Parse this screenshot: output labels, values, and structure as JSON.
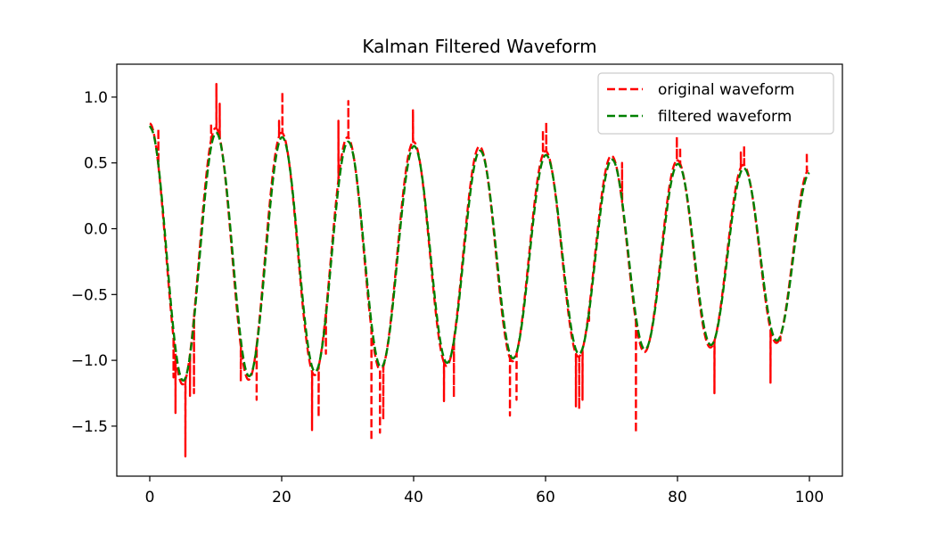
{
  "chart_data": {
    "type": "line",
    "title": "Kalman Filtered Waveform",
    "xlabel": "",
    "ylabel": "",
    "xlim": [
      -5,
      105
    ],
    "ylim": [
      -1.88,
      1.25
    ],
    "xticks": [
      0,
      20,
      40,
      60,
      80,
      100
    ],
    "xtick_labels": [
      "0",
      "20",
      "40",
      "60",
      "80",
      "100"
    ],
    "yticks": [
      -1.5,
      -1.0,
      -0.5,
      0.0,
      0.5,
      1.0
    ],
    "ytick_labels": [
      "−1.5",
      "−1.0",
      "−0.5",
      "0.0",
      "0.5",
      "1.0"
    ],
    "grid": false,
    "legend_position": "top-right",
    "signal_model": {
      "x_range": [
        0,
        100
      ],
      "period": 10,
      "amplitude_start": 1.0,
      "amplitude_end": 0.65,
      "offset_start": -0.2,
      "offset_end": -0.2
    },
    "series": [
      {
        "name": "original waveform",
        "color": "#ff0000",
        "style": "dashed",
        "spikes": [
          {
            "x": 1.3,
            "y": 0.76
          },
          {
            "x": 3.6,
            "y": -1.13
          },
          {
            "x": 3.9,
            "y": -1.4
          },
          {
            "x": 5.4,
            "y": -1.73
          },
          {
            "x": 6.1,
            "y": -1.27
          },
          {
            "x": 6.7,
            "y": -1.25
          },
          {
            "x": 9.3,
            "y": 0.8
          },
          {
            "x": 10.1,
            "y": 1.1
          },
          {
            "x": 10.6,
            "y": 0.95
          },
          {
            "x": 13.8,
            "y": -1.16
          },
          {
            "x": 16.2,
            "y": -1.3
          },
          {
            "x": 19.6,
            "y": 0.82
          },
          {
            "x": 20.1,
            "y": 1.04
          },
          {
            "x": 24.6,
            "y": -1.53
          },
          {
            "x": 25.6,
            "y": -1.43
          },
          {
            "x": 26.7,
            "y": -0.95
          },
          {
            "x": 28.6,
            "y": 0.82
          },
          {
            "x": 30.1,
            "y": 0.97
          },
          {
            "x": 33.6,
            "y": -1.61
          },
          {
            "x": 34.9,
            "y": -1.55
          },
          {
            "x": 35.4,
            "y": -1.45
          },
          {
            "x": 39.9,
            "y": 0.9
          },
          {
            "x": 44.6,
            "y": -1.31
          },
          {
            "x": 46.1,
            "y": -1.28
          },
          {
            "x": 54.6,
            "y": -1.42
          },
          {
            "x": 55.6,
            "y": -1.3
          },
          {
            "x": 59.6,
            "y": 0.75
          },
          {
            "x": 60.1,
            "y": 0.81
          },
          {
            "x": 64.6,
            "y": -1.35
          },
          {
            "x": 65.1,
            "y": -1.37
          },
          {
            "x": 65.6,
            "y": -1.3
          },
          {
            "x": 66.6,
            "y": -0.7
          },
          {
            "x": 71.6,
            "y": 0.5
          },
          {
            "x": 73.7,
            "y": -1.55
          },
          {
            "x": 79.9,
            "y": 0.7
          },
          {
            "x": 80.4,
            "y": 0.62
          },
          {
            "x": 85.6,
            "y": -1.25
          },
          {
            "x": 89.6,
            "y": 0.58
          },
          {
            "x": 90.1,
            "y": 0.63
          },
          {
            "x": 94.1,
            "y": -1.17
          },
          {
            "x": 95.6,
            "y": -0.85
          },
          {
            "x": 99.6,
            "y": 0.58
          }
        ]
      },
      {
        "name": "filtered waveform",
        "color": "#008000",
        "style": "dashed"
      }
    ]
  }
}
